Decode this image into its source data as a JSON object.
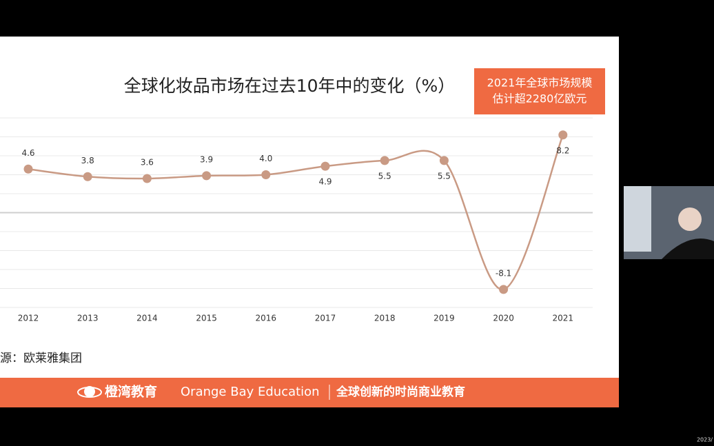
{
  "slide": {
    "title": "全球化妆品市场在过去10年中的变化（%）",
    "callout": [
      "2021年全球市场规模",
      "估计超2280亿欧元"
    ],
    "source": "源：欧莱雅集团"
  },
  "chart_data": {
    "type": "line",
    "categories": [
      "2012",
      "2013",
      "2014",
      "2015",
      "2016",
      "2017",
      "2018",
      "2019",
      "2020",
      "2021"
    ],
    "values": [
      4.6,
      3.8,
      3.6,
      3.9,
      4.0,
      4.9,
      5.5,
      5.5,
      -8.1,
      8.2
    ],
    "value_labels": [
      "4.6",
      "3.8",
      "3.6",
      "3.9",
      "4.0",
      "4.9",
      "5.5",
      "5.5",
      "-8.1",
      "8.2"
    ],
    "color": "#c99a84",
    "ylim": [
      -10,
      10
    ],
    "yticks": [
      -10,
      -8,
      -6,
      -4,
      -2,
      0,
      2,
      4,
      6,
      8,
      10
    ],
    "grid": true
  },
  "footer": {
    "brand": "橙湾教育",
    "english": "Orange Bay Education",
    "slogan": "全球创新的时尚商业教育"
  },
  "timestamp": "2023/"
}
